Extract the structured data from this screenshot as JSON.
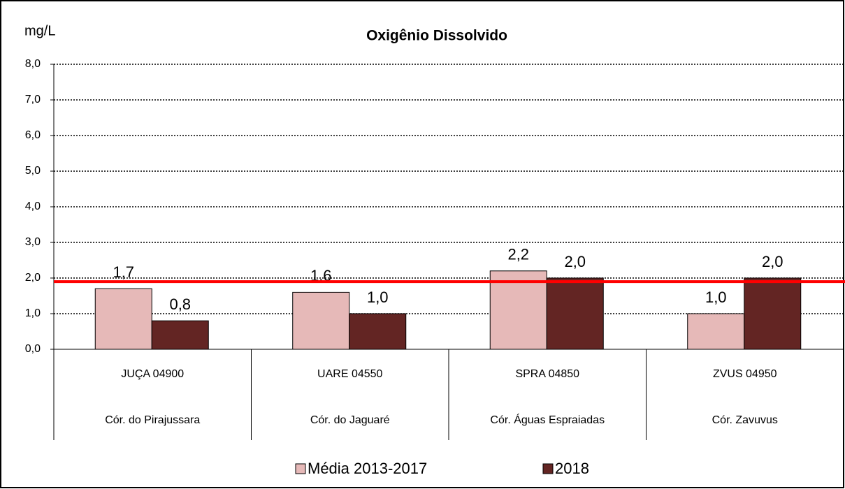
{
  "chart_data": {
    "type": "bar",
    "title": "Oxigênio Dissolvido",
    "y_label": "mg/L",
    "categories": [
      "JUÇA 04900",
      "UARE 04550",
      "SPRA 04850",
      "ZVUS 04950"
    ],
    "subcategories": [
      "Cór. do Pirajussara",
      "Cór. do Jaguaré",
      "Cór. Águas Espraiadas",
      "Cór. Zavuvus"
    ],
    "series": [
      {
        "name": "Média 2013-2017",
        "color": "#e6b9b8",
        "values": [
          1.7,
          1.6,
          2.2,
          1.0
        ],
        "value_labels": [
          "1,7",
          "1,6",
          "2,2",
          "1,0"
        ]
      },
      {
        "name": "2018",
        "color": "#632523",
        "values": [
          0.8,
          1.0,
          2.0,
          2.0
        ],
        "value_labels": [
          "0,8",
          "1,0",
          "2,0",
          "2,0"
        ]
      }
    ],
    "reference_line": {
      "value": 1.9,
      "color": "#ff0000"
    },
    "ylim": [
      0,
      8
    ],
    "yticks": [
      {
        "value": 0,
        "label": "0,0"
      },
      {
        "value": 1,
        "label": "1,0"
      },
      {
        "value": 2,
        "label": "2,0"
      },
      {
        "value": 3,
        "label": "3,0"
      },
      {
        "value": 4,
        "label": "4,0"
      },
      {
        "value": 5,
        "label": "5,0"
      },
      {
        "value": 6,
        "label": "6,0"
      },
      {
        "value": 7,
        "label": "7,0"
      },
      {
        "value": 8,
        "label": "8,0"
      }
    ],
    "grid": true
  }
}
